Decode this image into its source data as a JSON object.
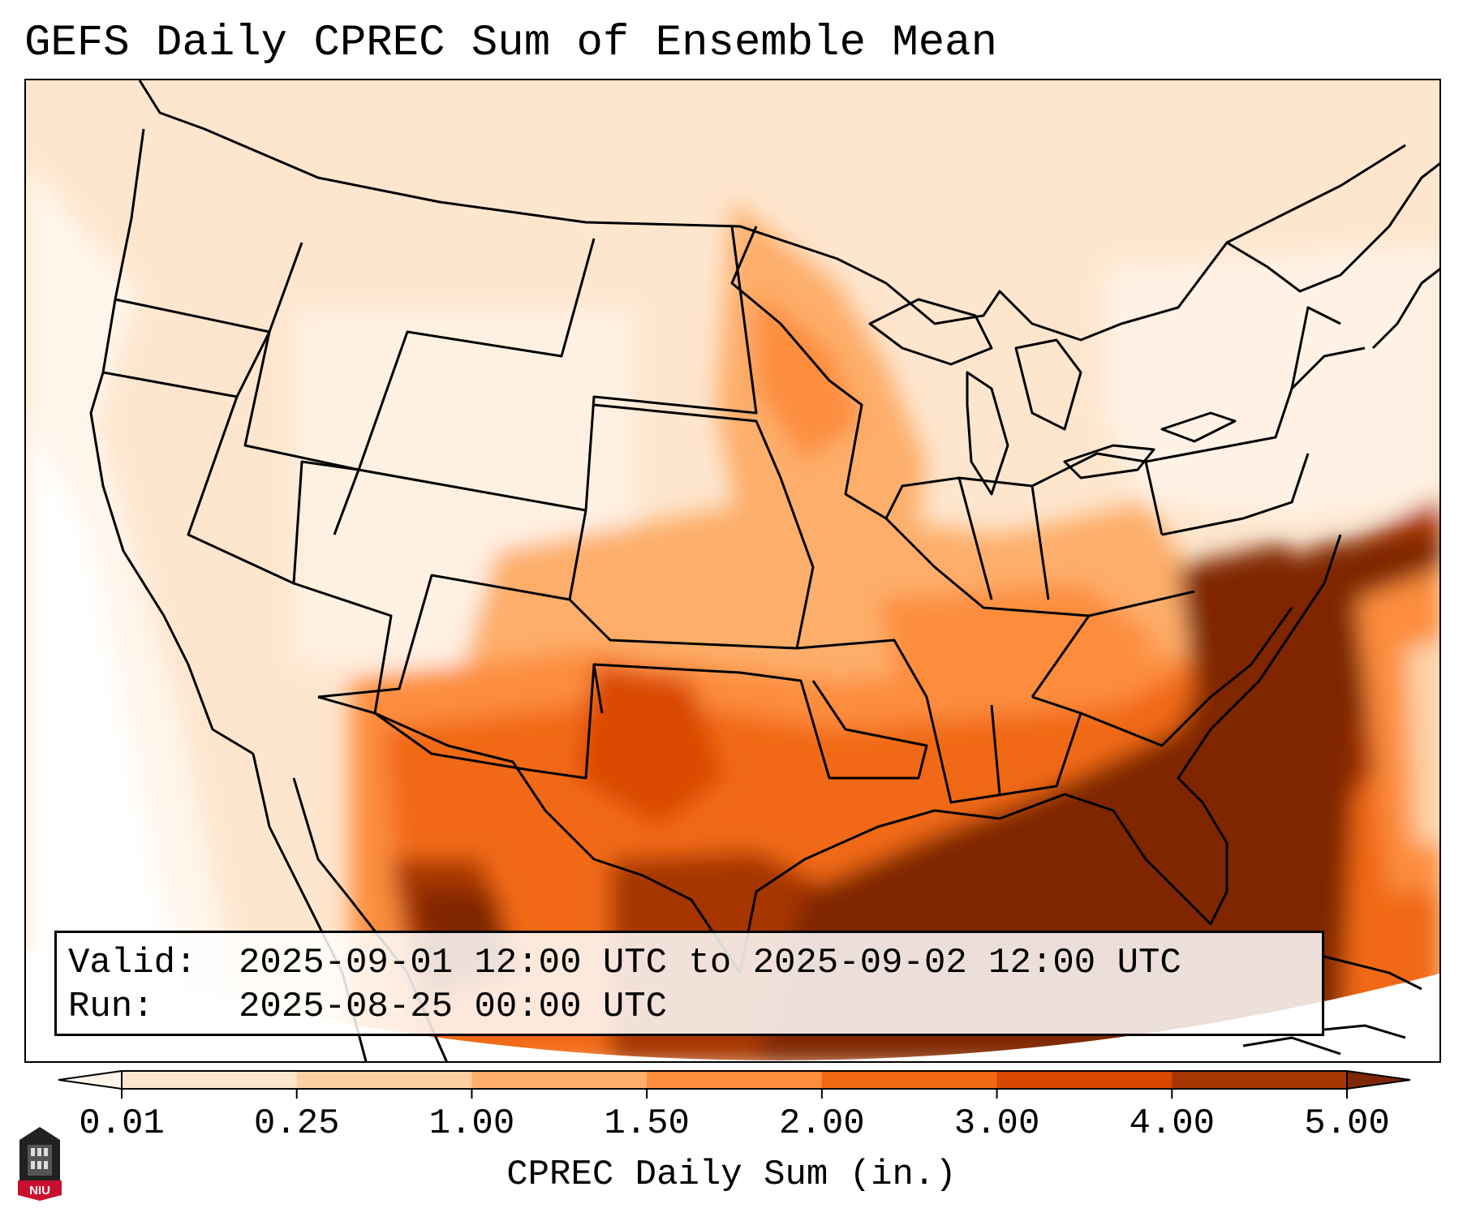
{
  "title": "GEFS Daily CPREC Sum of Ensemble Mean",
  "info": {
    "valid_label": "Valid:",
    "valid_value": "2025-09-01 12:00 UTC to 2025-09-02 12:00 UTC",
    "run_label": "Run:",
    "run_value": "2025-08-25 00:00 UTC"
  },
  "colorbar": {
    "label": "CPREC Daily Sum (in.)",
    "ticks": [
      "0.01",
      "0.25",
      "1.00",
      "1.50",
      "2.00",
      "3.00",
      "4.00",
      "5.00"
    ],
    "colors": [
      "#fff5eb",
      "#fee6ce",
      "#fdd0a2",
      "#fdae6b",
      "#fd8d3c",
      "#f16913",
      "#d94801",
      "#a63603",
      "#7f2704"
    ]
  },
  "logo": {
    "text": "NIU"
  },
  "colors": {
    "very_light": "#fff5eb",
    "light": "#fee6ce",
    "light_medium": "#fdd0a2",
    "medium": "#fdae6b",
    "medium_dark": "#fd8d3c",
    "orange": "#f16913",
    "dark": "#d94801",
    "darker": "#a63603",
    "darkest": "#7f2704"
  }
}
